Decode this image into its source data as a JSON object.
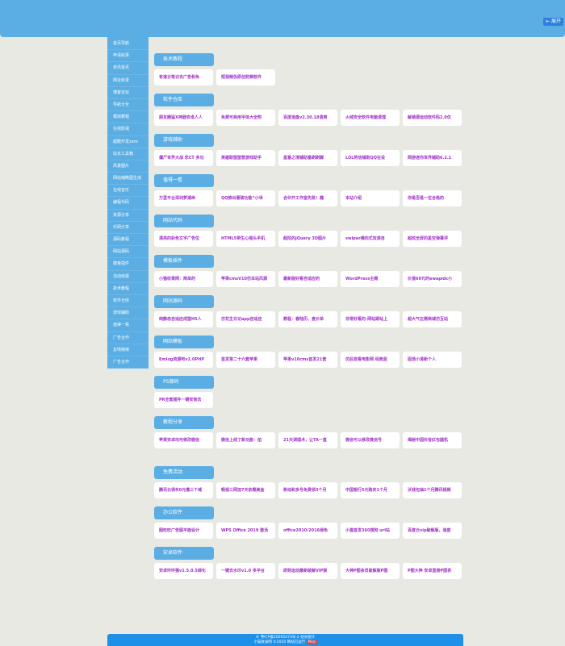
{
  "header": {
    "expand_label": "⇤ 展开"
  },
  "sidebar": {
    "items": [
      "首页导航",
      "申请收录",
      "资讯首页",
      "网址收录",
      "博客论坛",
      "导航大全",
      "模拟教程",
      "在线影视",
      "超酷开发zero",
      "站长工具箱",
      "风景图片",
      "网站缩略图生成",
      "在线音乐",
      "编程代码",
      "资源分享",
      "乐网分享",
      "源码教程",
      "网站源码",
      "模板插件",
      "活动线报",
      "技术教程",
      "软件仓库",
      "游戏辅助",
      "值得一看",
      "广告合作",
      "友情链接",
      "广告合作"
    ]
  },
  "sections": [
    {
      "title": "技术教程",
      "items": [
        "有道云笔记去广告和免",
        "短视频伪原创剪辑软件"
      ]
    },
    {
      "title": "软件仓库",
      "items": [
        "朋友圈猛X神器安卓人人",
        "免费可商用字体大全附",
        "百度速盘v2.30.18清爽",
        "火绒安全软件电脑清理",
        "解锁源运动软件码2.0仅"
      ]
    },
    {
      "title": "游戏辅助",
      "items": [
        "僵尸世界大战 非CT 多功",
        "英雄联盟盟营游戏助手",
        "星垂之境辅助垂刷刷脚",
        "LOL阿信辅助QQ在设",
        "网游迷你世界辅助6.2.1"
      ]
    },
    {
      "title": "值得一看",
      "items": [
        "万里平台深圳梦湖命",
        "QQ推出重磅功能“小世",
        "合伙开工作室失败！趣",
        "本站介绍",
        "你是否是一位合格的"
      ]
    },
    {
      "title": "网站代码",
      "items": [
        "漂亮的彩色文字广告位",
        "HTML5带生心摇头手机",
        "超炫的jQuery 3D图片",
        "swiper横向式双滚自",
        "超炫全屏的星空弹幕评"
      ]
    },
    {
      "title": "模板插件",
      "items": [
        "小猫收录网：简单的",
        "苹果cmsV10仿本站风源",
        "最新版好看自适应的",
        "WordPress主题",
        "价值60元的ewapidc小"
      ]
    },
    {
      "title": "网站源码",
      "items": [
        "纯静态自适应成盟H5人",
        "仿花生日记app自适应",
        "教程：春陆历、查价单",
        "非常好看的-网站跟站上",
        "超大气左侧商城仿互站"
      ]
    },
    {
      "title": "网站模板",
      "items": [
        "Emlog资源吧v2.0PHP",
        "首发第二十六套苹果",
        "苹果v10cms首发21套",
        "仿后宫看电影网 经典蓝",
        "固浩小清新个人"
      ]
    },
    {
      "title": "PS源码",
      "items": [
        "PR全套插件一键安装去"
      ]
    },
    {
      "title": "教程分享",
      "items": [
        "苹果安卓均可修改微信",
        "微信上线了新功能：拍",
        "21天调理术，让TA一直",
        "微信可以修改微信号",
        "揭秘中国抖音红包腿机"
      ]
    },
    {
      "title": "免费活动",
      "items": [
        "腾讯云领취0元撸三个域",
        "畅视三网加7天依题美金",
        "移动和多号免费领3个月",
        "中国银行5元购买1个月",
        "沃钱包抽1个月腾讯视频"
      ]
    },
    {
      "title": "办公软件",
      "items": [
        "图旺旺广告图平面设计",
        "WPS Office 2019 激活",
        "office2010/2016绿色",
        "小猫首发360搜狗 url站",
        "百度云vip破解版，速度"
      ]
    },
    {
      "title": "安卓软件",
      "items": [
        "安卓环环猫v1.5.0.5绿化",
        "一键去水印v1.0 多平台",
        "即刻运动最新破解VIP版",
        "大神P图会员破解版P图",
        "P图大神 安卓直接P图表"
      ]
    }
  ],
  "footer": {
    "line1": "© 粤ICP备20005473号-2 站长统计",
    "line2": "小猫收录网 ©2020 网站已运行",
    "badge": "Pika"
  },
  "colors": {
    "primary": "#5aaee3",
    "footer": "#1e90e8",
    "link": "#a02ec6"
  }
}
